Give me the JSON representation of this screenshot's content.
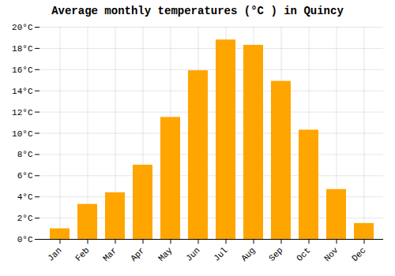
{
  "chart_data": {
    "type": "bar",
    "title": "Average monthly temperatures (°C ) in Quincy",
    "categories": [
      "Jan",
      "Feb",
      "Mar",
      "Apr",
      "May",
      "Jun",
      "Jul",
      "Aug",
      "Sep",
      "Oct",
      "Nov",
      "Dec"
    ],
    "values": [
      1.0,
      3.3,
      4.4,
      7.0,
      11.5,
      15.9,
      18.8,
      18.3,
      14.9,
      10.3,
      4.7,
      1.5
    ],
    "color": "#FFA500",
    "ylim": [
      0,
      20
    ],
    "yticks": [
      {
        "value": 0,
        "label": "0°C"
      },
      {
        "value": 2,
        "label": "2°C"
      },
      {
        "value": 4,
        "label": "4°C"
      },
      {
        "value": 6,
        "label": "6°C"
      },
      {
        "value": 8,
        "label": "8°C"
      },
      {
        "value": 10,
        "label": "10°C"
      },
      {
        "value": 12,
        "label": "12°C"
      },
      {
        "value": 14,
        "label": "14°C"
      },
      {
        "value": 16,
        "label": "16°C"
      },
      {
        "value": 18,
        "label": "18°C"
      },
      {
        "value": 20,
        "label": "20°C"
      }
    ],
    "grid": true
  }
}
